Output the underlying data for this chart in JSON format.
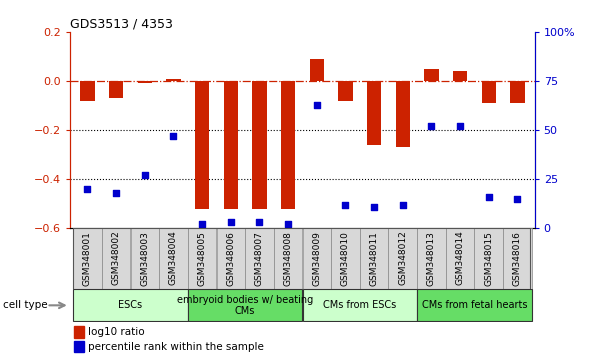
{
  "title": "GDS3513 / 4353",
  "categories": [
    "GSM348001",
    "GSM348002",
    "GSM348003",
    "GSM348004",
    "GSM348005",
    "GSM348006",
    "GSM348007",
    "GSM348008",
    "GSM348009",
    "GSM348010",
    "GSM348011",
    "GSM348012",
    "GSM348013",
    "GSM348014",
    "GSM348015",
    "GSM348016"
  ],
  "log10_ratio": [
    -0.08,
    -0.07,
    -0.01,
    0.01,
    -0.52,
    -0.52,
    -0.52,
    -0.52,
    0.09,
    -0.08,
    -0.26,
    -0.27,
    0.05,
    0.04,
    -0.09,
    -0.09
  ],
  "percentile_rank": [
    20,
    18,
    27,
    47,
    2,
    3,
    3,
    2,
    63,
    12,
    11,
    12,
    52,
    52,
    16,
    15
  ],
  "bar_color": "#cc2200",
  "dot_color": "#0000cc",
  "ylim_left": [
    -0.6,
    0.2
  ],
  "ylim_right": [
    0,
    100
  ],
  "yticks_left": [
    -0.6,
    -0.4,
    -0.2,
    0.0,
    0.2
  ],
  "yticks_right": [
    0,
    25,
    50,
    75,
    100
  ],
  "ytick_labels_right": [
    "0",
    "25",
    "50",
    "75",
    "100%"
  ],
  "hline_y": 0.0,
  "dotted_lines": [
    -0.2,
    -0.4
  ],
  "cell_types": [
    {
      "label": "ESCs",
      "start": 0,
      "end": 3,
      "color": "#ccffcc"
    },
    {
      "label": "embryoid bodies w/ beating\nCMs",
      "start": 4,
      "end": 7,
      "color": "#66dd66"
    },
    {
      "label": "CMs from ESCs",
      "start": 8,
      "end": 11,
      "color": "#ccffcc"
    },
    {
      "label": "CMs from fetal hearts",
      "start": 12,
      "end": 15,
      "color": "#66dd66"
    }
  ],
  "legend_items": [
    {
      "label": "log10 ratio",
      "color": "#cc2200"
    },
    {
      "label": "percentile rank within the sample",
      "color": "#0000cc"
    }
  ],
  "cell_type_label": "cell type",
  "bar_width": 0.5,
  "dot_size": 22
}
